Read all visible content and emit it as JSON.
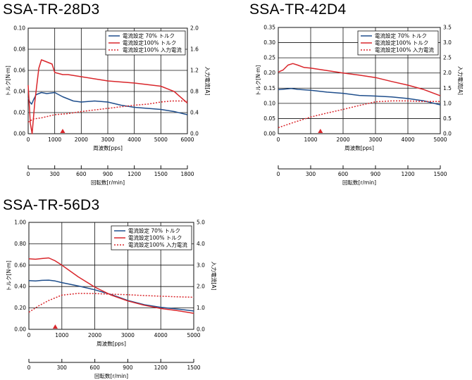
{
  "charts": [
    {
      "title": "SSA-TR-28D3",
      "chart_data": {
        "type": "line",
        "title": "SSA-TR-28D3",
        "xlabel": "周波数[pps]",
        "x2label": "回転数[r/min]",
        "ylabel": "トルク[N·m]",
        "y2label": "入力電流[A]",
        "xlim": [
          0,
          6000
        ],
        "x_ticks": [
          "0",
          "1000",
          "2000",
          "3000",
          "4000",
          "5000",
          "6000"
        ],
        "x2_ticks": [
          "0",
          "300",
          "600",
          "900",
          "1200",
          "1500",
          "1800"
        ],
        "ylim": [
          0,
          0.1
        ],
        "y_ticks": [
          "0.00",
          "0.02",
          "0.04",
          "0.06",
          "0.08",
          "0.10"
        ],
        "y2lim": [
          0,
          2.0
        ],
        "y2_ticks": [
          "0.0",
          "0.4",
          "0.8",
          "1.2",
          "1.6",
          "2.0"
        ],
        "marker_x": 1300,
        "legend_position": "top-right",
        "series": [
          {
            "name": "電流設定 70% トルク",
            "color": "#1f4e8c",
            "axis": "left",
            "dash": false,
            "x": [
              0,
              60,
              130,
              200,
              300,
              500,
              700,
              1000,
              1300,
              1700,
              2000,
              2500,
              3000,
              3500,
              4000,
              4500,
              5000,
              5500,
              6000
            ],
            "y": [
              0.034,
              0.03,
              0.028,
              0.032,
              0.037,
              0.039,
              0.038,
              0.039,
              0.035,
              0.031,
              0.03,
              0.031,
              0.03,
              0.027,
              0.025,
              0.024,
              0.023,
              0.021,
              0.018
            ]
          },
          {
            "name": "電流設定100% トルク",
            "color": "#d9262b",
            "axis": "left",
            "dash": false,
            "x": [
              0,
              80,
              150,
              250,
              400,
              500,
              700,
              900,
              1000,
              1300,
              1500,
              2000,
              3000,
              4000,
              5000,
              5500,
              6000
            ],
            "y": [
              0.046,
              0.01,
              0.0,
              0.03,
              0.062,
              0.07,
              0.068,
              0.066,
              0.058,
              0.056,
              0.056,
              0.054,
              0.05,
              0.048,
              0.045,
              0.04,
              0.029
            ]
          },
          {
            "name": "電流設定100% 入力電流",
            "color": "#d9262b",
            "axis": "right",
            "dash": true,
            "x": [
              0,
              200,
              500,
              1000,
              1500,
              2000,
              3000,
              4000,
              4500,
              5000,
              5400,
              6000
            ],
            "y": [
              0.22,
              0.28,
              0.3,
              0.36,
              0.38,
              0.42,
              0.48,
              0.54,
              0.56,
              0.6,
              0.62,
              0.62
            ]
          }
        ]
      }
    },
    {
      "title": "SSA-TR-42D4",
      "chart_data": {
        "type": "line",
        "title": "SSA-TR-42D4",
        "xlabel": "周波数[pps]",
        "x2label": "回転数[r/min]",
        "ylabel": "トルク[N·m]",
        "y2label": "入力電流[A]",
        "xlim": [
          0,
          5000
        ],
        "x_ticks": [
          "0",
          "1000",
          "2000",
          "3000",
          "4000",
          "5000"
        ],
        "x2_ticks": [
          "0",
          "300",
          "600",
          "900",
          "1200",
          "1500"
        ],
        "ylim": [
          0,
          0.35
        ],
        "y_ticks": [
          "0.00",
          "0.05",
          "0.10",
          "0.15",
          "0.20",
          "0.25",
          "0.30",
          "0.35"
        ],
        "y2lim": [
          0,
          3.5
        ],
        "y2_ticks": [
          "0.0",
          "0.5",
          "1.0",
          "1.5",
          "2.0",
          "2.5",
          "3.0",
          "3.5"
        ],
        "marker_x": 1300,
        "legend_position": "top-right",
        "series": [
          {
            "name": "電流設定 70% トルク",
            "color": "#1f4e8c",
            "axis": "left",
            "dash": false,
            "x": [
              0,
              200,
              400,
              600,
              1000,
              1500,
              2000,
              2500,
              3000,
              3500,
              4000,
              4500,
              5000
            ],
            "y": [
              0.145,
              0.147,
              0.149,
              0.146,
              0.143,
              0.137,
              0.133,
              0.126,
              0.124,
              0.121,
              0.116,
              0.108,
              0.095
            ]
          },
          {
            "name": "電流設定100% トルク",
            "color": "#d9262b",
            "axis": "left",
            "dash": false,
            "x": [
              0,
              150,
              300,
              450,
              600,
              800,
              1000,
              1500,
              2000,
              2500,
              3000,
              3500,
              4000,
              4500,
              5000
            ],
            "y": [
              0.203,
              0.21,
              0.226,
              0.231,
              0.226,
              0.218,
              0.216,
              0.208,
              0.2,
              0.193,
              0.185,
              0.172,
              0.16,
              0.145,
              0.125
            ]
          },
          {
            "name": "電流設定100% 入力電流",
            "color": "#d9262b",
            "axis": "right",
            "dash": true,
            "x": [
              0,
              500,
              1000,
              1500,
              2000,
              2500,
              3000,
              3500,
              4000,
              4500,
              5000
            ],
            "y": [
              0.2,
              0.38,
              0.55,
              0.68,
              0.8,
              0.93,
              1.05,
              1.08,
              1.08,
              1.06,
              1.06
            ]
          }
        ]
      }
    },
    {
      "title": "SSA-TR-56D3",
      "chart_data": {
        "type": "line",
        "title": "SSA-TR-56D3",
        "xlabel": "周波数[pps]",
        "x2label": "回転数[r/min]",
        "ylabel": "トルク[N·m]",
        "y2label": "入力電流[A]",
        "xlim": [
          0,
          5000
        ],
        "x_ticks": [
          "0",
          "1000",
          "2000",
          "3000",
          "4000",
          "5000"
        ],
        "x2_ticks": [
          "0",
          "300",
          "600",
          "900",
          "1200",
          "1500"
        ],
        "ylim": [
          0,
          1.0
        ],
        "y_ticks": [
          "0.00",
          "0.20",
          "0.40",
          "0.60",
          "0.80",
          "1.00"
        ],
        "y2lim": [
          0,
          5.0
        ],
        "y2_ticks": [
          "0.0",
          "1.0",
          "2.0",
          "3.0",
          "4.0",
          "5.0"
        ],
        "marker_x": 800,
        "legend_position": "top-right",
        "series": [
          {
            "name": "電流設定 70% トルク",
            "color": "#1f4e8c",
            "axis": "left",
            "dash": false,
            "x": [
              0,
              200,
              400,
              600,
              800,
              1000,
              1500,
              2000,
              2500,
              3000,
              3500,
              4000,
              4500,
              5000
            ],
            "y": [
              0.455,
              0.452,
              0.458,
              0.46,
              0.452,
              0.437,
              0.405,
              0.37,
              0.325,
              0.27,
              0.23,
              0.205,
              0.19,
              0.172
            ]
          },
          {
            "name": "電流設定100% トルク",
            "color": "#d9262b",
            "axis": "left",
            "dash": false,
            "x": [
              0,
              200,
              400,
              600,
              800,
              1000,
              1500,
              2000,
              2500,
              3000,
              3500,
              4000,
              4500,
              5000
            ],
            "y": [
              0.66,
              0.655,
              0.662,
              0.668,
              0.64,
              0.6,
              0.49,
              0.395,
              0.32,
              0.265,
              0.225,
              0.195,
              0.175,
              0.15
            ]
          },
          {
            "name": "電流設定100% 入力電流",
            "color": "#d9262b",
            "axis": "right",
            "dash": true,
            "x": [
              0,
              300,
              600,
              1000,
              1500,
              2000,
              2500,
              3000,
              3500,
              4000,
              4500,
              5000
            ],
            "y": [
              0.8,
              1.1,
              1.35,
              1.6,
              1.68,
              1.67,
              1.64,
              1.62,
              1.58,
              1.55,
              1.52,
              1.5
            ]
          }
        ]
      }
    }
  ]
}
